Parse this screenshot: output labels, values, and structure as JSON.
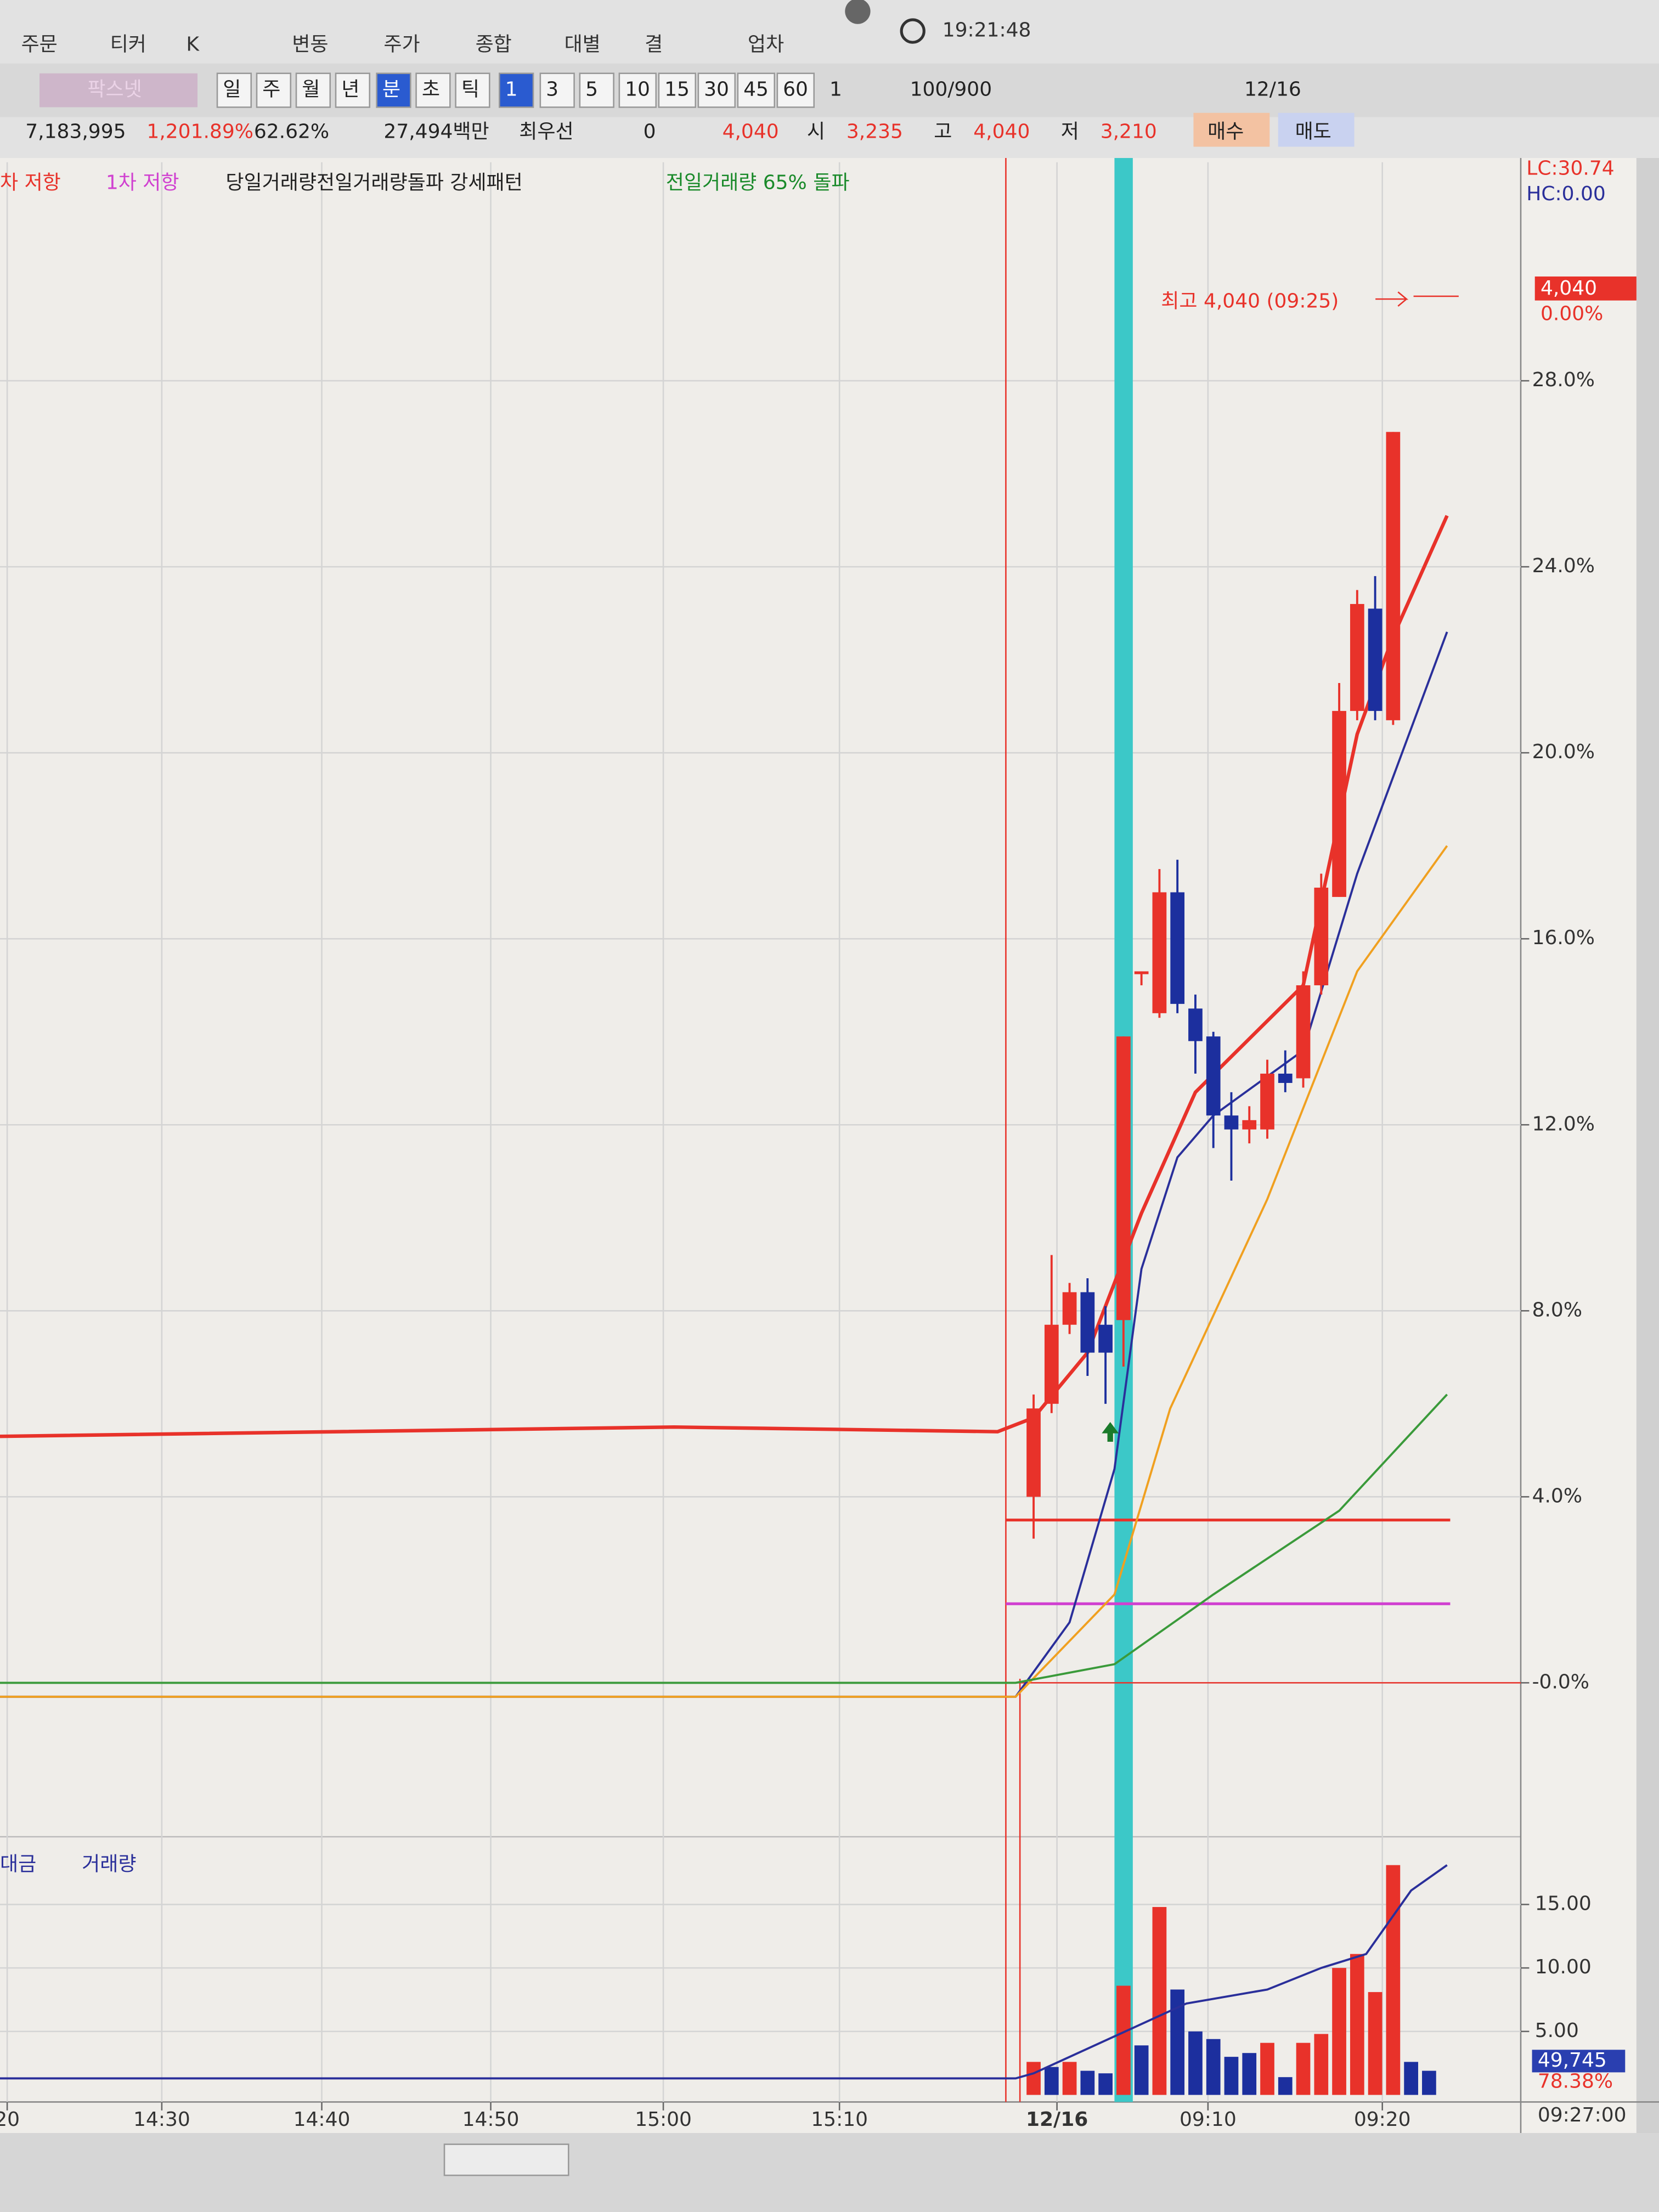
{
  "ui": {
    "menu": [
      "주문",
      "티커",
      "K",
      "변동",
      "주가",
      "종합",
      "대별",
      "결",
      "업차"
    ],
    "clock": "19:21:48",
    "toolbar": [
      "팍스넷",
      "일",
      "주",
      "월",
      "년",
      "분",
      "초",
      "틱",
      "1",
      "3",
      "5",
      "10",
      "15",
      "30",
      "45",
      "60",
      "1",
      "100/900",
      "12/16"
    ],
    "quote": [
      "7,183,995",
      "1,201.89%",
      "62.62%",
      "27,494백만",
      "최우선",
      "0",
      "4,040",
      "시",
      "3,235",
      "고",
      "4,040",
      "저",
      "3,210",
      "매수",
      "매도"
    ],
    "legend": [
      "차 저항",
      "1차 저항",
      "당일거래량전일거래량돌파 강세패턴",
      "전일거래량 65% 돌파"
    ],
    "volume_legend": [
      "대금",
      "거래량"
    ]
  },
  "chart_data": [
    {
      "type": "candlestick",
      "x": [
        0,
        1,
        2,
        3,
        4,
        5,
        6,
        7,
        8,
        9,
        10,
        11,
        12,
        13,
        14,
        15,
        16,
        17,
        18,
        19,
        20
      ],
      "open": [
        4.0,
        6.0,
        7.7,
        8.4,
        7.7,
        7.8,
        15.3,
        14.4,
        17.0,
        14.5,
        13.9,
        12.2,
        11.9,
        11.9,
        13.1,
        13.0,
        15.0,
        16.9,
        20.9,
        23.1,
        20.7
      ],
      "high": [
        6.2,
        9.2,
        8.6,
        8.7,
        8.1,
        13.9,
        15.3,
        17.5,
        17.7,
        14.8,
        14.0,
        12.7,
        12.4,
        13.4,
        13.6,
        15.3,
        17.4,
        21.5,
        23.5,
        23.8,
        26.9
      ],
      "low": [
        3.1,
        5.8,
        7.5,
        6.6,
        6.0,
        6.8,
        15.0,
        14.3,
        14.4,
        13.1,
        11.5,
        10.8,
        11.6,
        11.7,
        12.7,
        12.8,
        14.8,
        16.9,
        20.7,
        20.7,
        20.6
      ],
      "close": [
        5.9,
        7.7,
        8.4,
        7.1,
        7.1,
        13.9,
        15.3,
        17.0,
        14.6,
        13.8,
        12.2,
        11.9,
        12.1,
        13.1,
        12.9,
        15.0,
        17.1,
        20.9,
        23.2,
        20.9,
        26.9
      ],
      "up_color": "#e8322a",
      "down_color": "#1c2f9e",
      "lines": [
        {
          "color": "#e8322a",
          "x": [
            -57.5,
            -20,
            -2,
            0,
            3,
            6,
            9,
            15,
            18,
            20,
            23
          ],
          "values": [
            5.3,
            5.5,
            5.4,
            5.7,
            7.1,
            10.1,
            12.7,
            15.0,
            20.4,
            22.5,
            25.1
          ]
        },
        {
          "color": "#2a2f9a",
          "x": [
            -57.5,
            -1,
            2,
            4.5,
            6,
            8,
            10,
            15,
            18,
            23
          ],
          "values": [
            -0.3,
            -0.3,
            1.3,
            4.6,
            8.9,
            11.3,
            12.2,
            13.6,
            17.4,
            22.6
          ]
        },
        {
          "color": "#f0a020",
          "x": [
            -57.5,
            -1,
            4.5,
            7.6,
            13,
            18,
            23
          ],
          "values": [
            -0.3,
            -0.3,
            1.9,
            5.9,
            10.4,
            15.3,
            18.0
          ]
        },
        {
          "color": "#3a9a3a",
          "x": [
            -57.5,
            -1,
            4.5,
            10,
            17,
            23
          ],
          "values": [
            0,
            0,
            0.4,
            1.9,
            3.7,
            6.2
          ]
        }
      ],
      "hlines": [
        {
          "value": 3.5,
          "color": "#e8322a"
        },
        {
          "value": 1.7,
          "color": "#d040d0"
        },
        {
          "value": 0,
          "color": "#e8322a"
        }
      ],
      "xlim": [
        -57.5,
        27.1
      ],
      "ylim": [
        -3.25,
        32.7
      ],
      "yticks": [
        {
          "value": 0,
          "label": "-0.0%"
        },
        {
          "value": 4,
          "label": "4.0%"
        },
        {
          "value": 8,
          "label": "8.0%"
        },
        {
          "value": 12,
          "label": "12.0%"
        },
        {
          "value": 16,
          "label": "16.0%"
        },
        {
          "value": 20,
          "label": "20.0%"
        },
        {
          "value": 24,
          "label": "24.0%"
        },
        {
          "value": 28,
          "label": "28.0%"
        }
      ],
      "grid": true,
      "annotation": "최고 4,040 (09:25)",
      "lc_label": "LC:30.74",
      "hc_label": "HC:0.00",
      "price_label": "4,040",
      "change_label": "0.00%"
    },
    {
      "type": "bar",
      "x": [
        0,
        1,
        2,
        3,
        4,
        5,
        6,
        7,
        8,
        9,
        10,
        11,
        12,
        13,
        14,
        15,
        16,
        17,
        18,
        19,
        20,
        21,
        22
      ],
      "values": [
        2.6,
        2.2,
        2.6,
        1.9,
        1.7,
        8.6,
        3.9,
        14.8,
        8.3,
        5.0,
        4.4,
        3.0,
        3.3,
        4.1,
        1.4,
        4.1,
        4.8,
        10.0,
        11.1,
        8.1,
        18.1,
        2.6,
        1.9
      ],
      "bar_colors": [
        "#e8322a",
        "#1c2f9e",
        "#e8322a",
        "#1c2f9e",
        "#1c2f9e",
        "#e8322a",
        "#1c2f9e",
        "#e8322a",
        "#1c2f9e",
        "#1c2f9e",
        "#1c2f9e",
        "#1c2f9e",
        "#1c2f9e",
        "#e8322a",
        "#1c2f9e",
        "#e8322a",
        "#e8322a",
        "#e8322a",
        "#e8322a",
        "#e8322a",
        "#e8322a",
        "#1c2f9e",
        "#1c2f9e"
      ],
      "line": {
        "color": "#2a2f9a",
        "x": [
          -57.5,
          -1,
          0,
          8.5,
          13,
          16,
          18.5,
          21,
          23
        ],
        "values": [
          1.3,
          1.3,
          1.7,
          7.2,
          8.3,
          10.0,
          11.1,
          16.1,
          18.1
        ]
      },
      "xlim": [
        -57.5,
        27.1
      ],
      "ylim": [
        0,
        20
      ],
      "yticks": [
        {
          "value": 5,
          "label": "5.00"
        },
        {
          "value": 10,
          "label": "10.00"
        },
        {
          "value": 15,
          "label": "15.00"
        }
      ],
      "xticks": [
        {
          "value": -57.1,
          "label": "20"
        },
        {
          "value": -48.5,
          "label": "14:30"
        },
        {
          "value": -39.6,
          "label": "14:40"
        },
        {
          "value": -30.2,
          "label": "14:50"
        },
        {
          "value": -20.6,
          "label": "15:00"
        },
        {
          "value": -10.8,
          "label": "15:10"
        },
        {
          "value": 1.3,
          "label": "12/16"
        },
        {
          "value": 9.7,
          "label": "09:10"
        },
        {
          "value": 19.4,
          "label": "09:20"
        }
      ],
      "grid": true,
      "amount_label": "49,745",
      "ratio_label": "78.38%",
      "time_label": "09:27:00"
    }
  ]
}
